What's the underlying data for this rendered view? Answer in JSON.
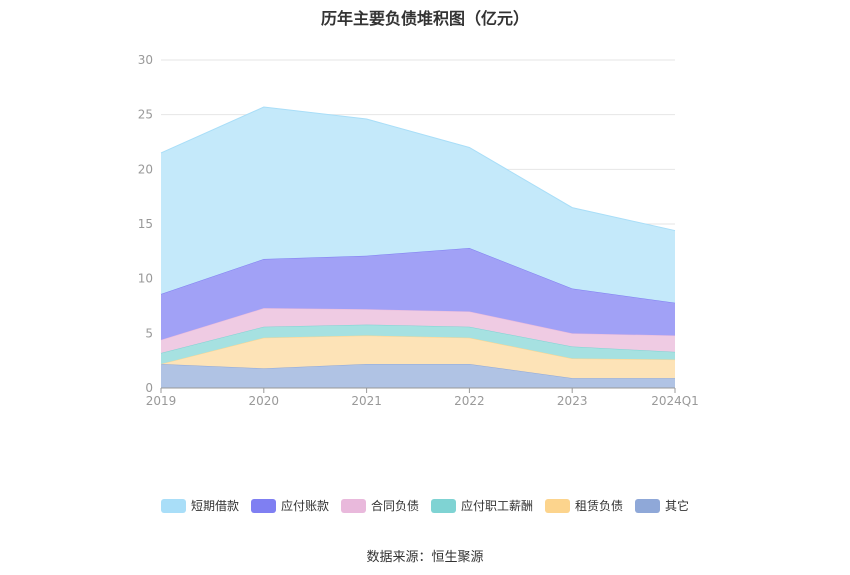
{
  "chart_data": {
    "type": "area",
    "stacked": true,
    "title": "历年主要负债堆积图（亿元）",
    "categories": [
      "2019",
      "2020",
      "2021",
      "2022",
      "2023",
      "2024Q1"
    ],
    "ylim": [
      0,
      30
    ],
    "yticks": [
      0,
      5,
      10,
      15,
      20,
      25,
      30
    ],
    "grid": true,
    "legend_position": "bottom",
    "series": [
      {
        "name": "其它",
        "color": "#8fa8d8",
        "fill": "#b0c3e4",
        "values": [
          2.2,
          1.8,
          2.2,
          2.2,
          0.9,
          0.9
        ]
      },
      {
        "name": "租赁负债",
        "color": "#fcd48d",
        "fill": "#fde3b7",
        "values": [
          0.0,
          2.8,
          2.6,
          2.4,
          1.8,
          1.7
        ]
      },
      {
        "name": "应付职工薪酬",
        "color": "#7fd3d3",
        "fill": "#a6e1e1",
        "values": [
          1.0,
          1.0,
          1.0,
          1.0,
          1.1,
          0.7
        ]
      },
      {
        "name": "合同负债",
        "color": "#e9b9dc",
        "fill": "#efcbe3",
        "values": [
          1.2,
          1.7,
          1.4,
          1.4,
          1.2,
          1.5
        ]
      },
      {
        "name": "应付账款",
        "color": "#7f7ff2",
        "fill": "#a1a1f6",
        "values": [
          4.2,
          4.5,
          4.9,
          5.8,
          4.1,
          3.0
        ]
      },
      {
        "name": "短期借款",
        "color": "#a9def8",
        "fill": "#c4e9fa",
        "values": [
          12.9,
          13.9,
          12.5,
          9.2,
          7.4,
          6.6
        ]
      }
    ],
    "legend_order": [
      "短期借款",
      "应付账款",
      "合同负债",
      "应付职工薪酬",
      "租赁负债",
      "其它"
    ]
  },
  "source": "数据来源：恒生聚源"
}
